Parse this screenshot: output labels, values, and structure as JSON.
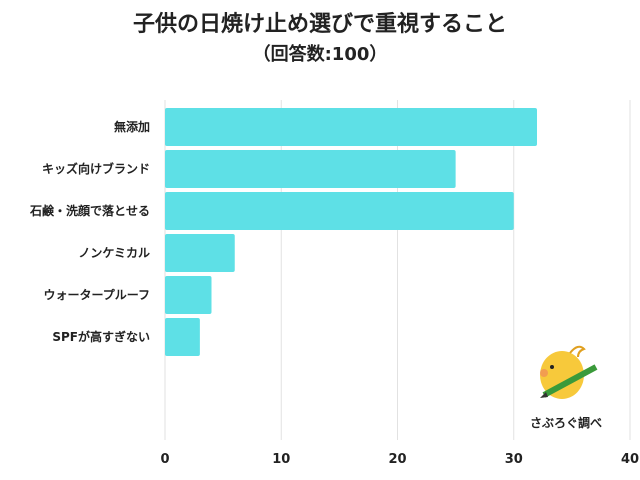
{
  "chart_data": {
    "type": "bar",
    "orientation": "horizontal",
    "title": "子供の日焼け止め選びで重視すること",
    "subtitle": "（回答数:100）",
    "categories": [
      "無添加",
      "キッズ向けブランド",
      "石鹸・洗顔で落とせる",
      "ノンケミカル",
      "ウォータープルーフ",
      "SPFが高すぎない"
    ],
    "values": [
      32,
      25,
      30,
      6,
      4,
      3
    ],
    "xlim": [
      0,
      40
    ],
    "xticks": [
      "0",
      "10",
      "20",
      "30",
      "40"
    ],
    "xlabel": "",
    "ylabel": "",
    "grid": true,
    "bar_color": "#5ee0e6",
    "grid_color": "#e2e2e2"
  },
  "watermark": {
    "text": "さぶろぐ調べ"
  }
}
